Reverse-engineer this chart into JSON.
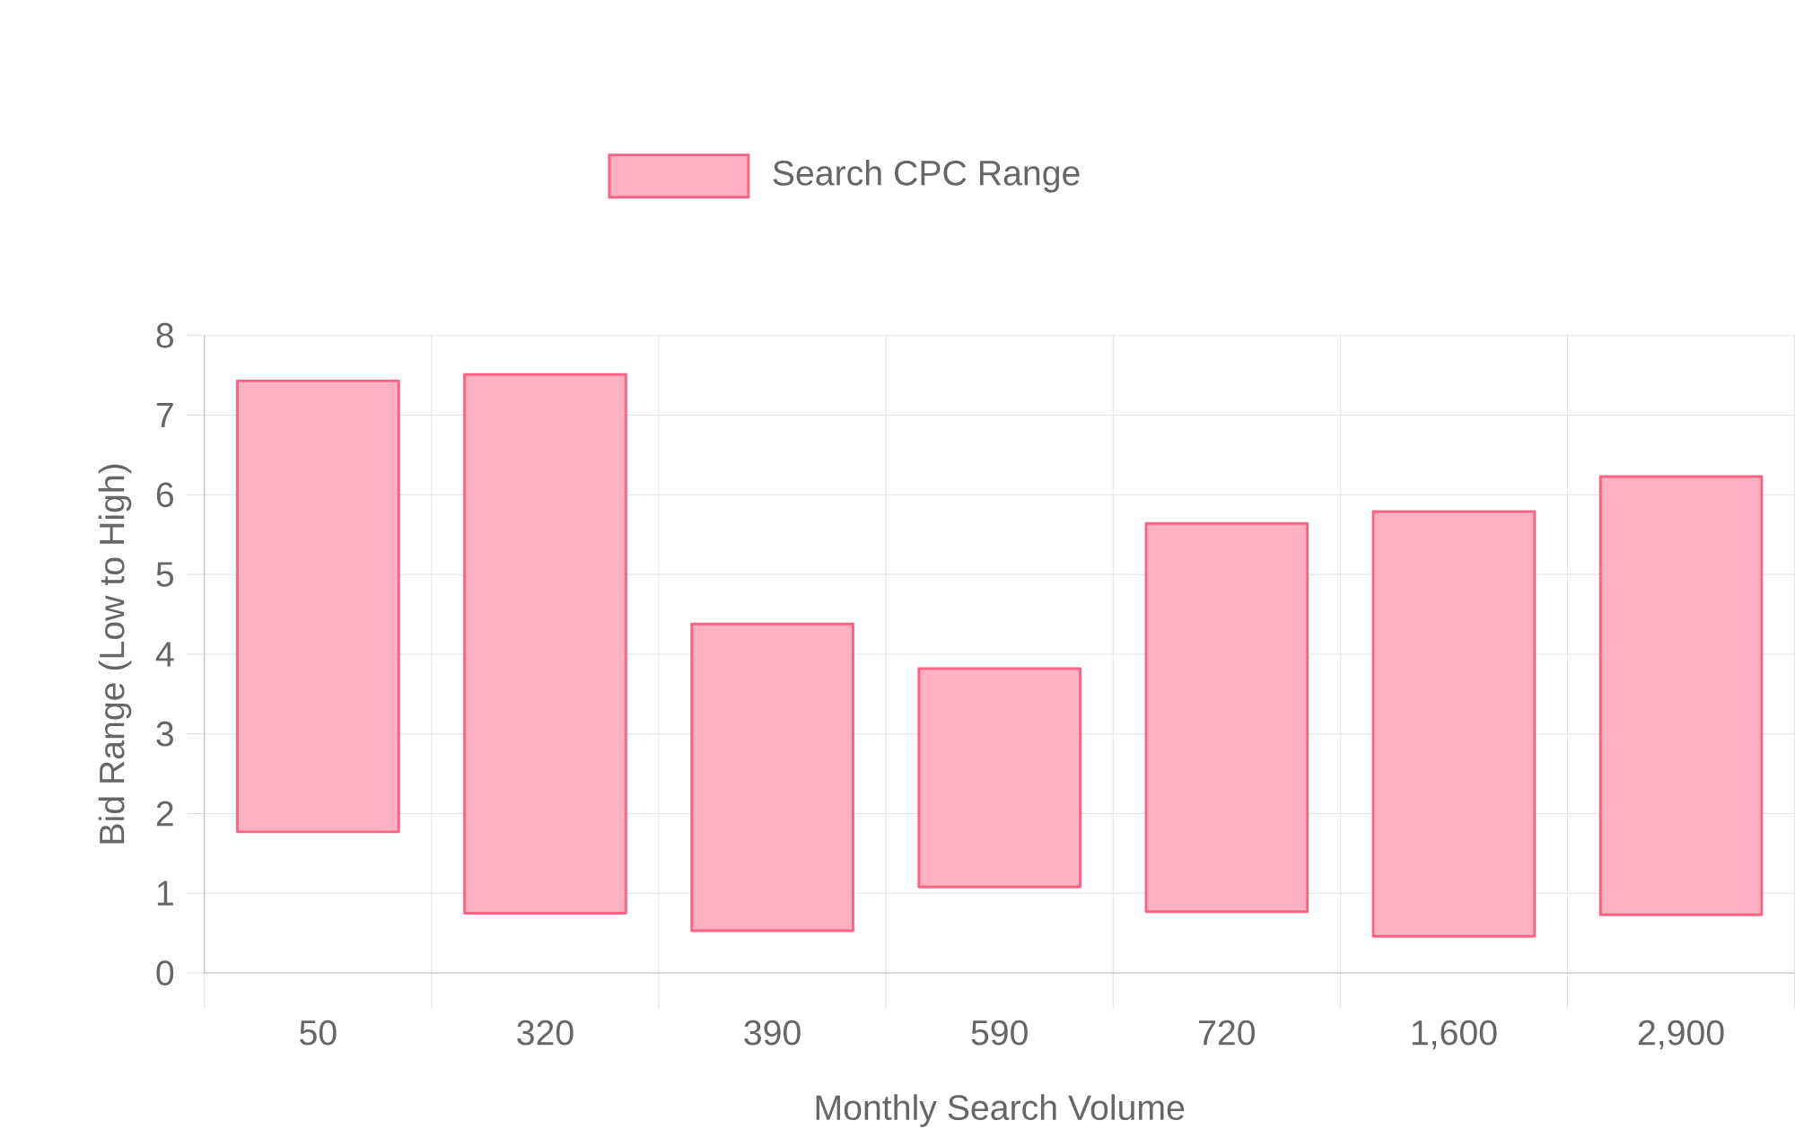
{
  "chart_data": {
    "type": "bar",
    "xlabel": "Monthly Search Volume",
    "ylabel": "Bid Range (Low to High)",
    "categories": [
      "50",
      "320",
      "390",
      "590",
      "720",
      "1,600",
      "2,900"
    ],
    "series": [
      {
        "name": "Search CPC Range",
        "color": "#ffb1c1",
        "base": [
          1.77,
          0.75,
          0.53,
          1.08,
          0.77,
          0.46,
          0.73
        ],
        "values": [
          5.66,
          6.76,
          3.85,
          2.74,
          4.87,
          5.33,
          5.5
        ]
      }
    ],
    "ylim": [
      0,
      8
    ],
    "yticks": [
      0,
      1,
      2,
      3,
      4,
      5,
      6,
      7,
      8
    ],
    "grid": true,
    "legend": "top"
  }
}
